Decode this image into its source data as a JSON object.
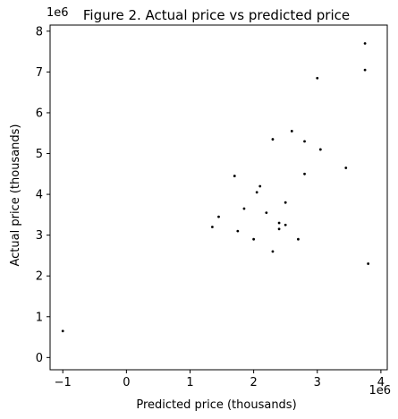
{
  "chart_data": {
    "type": "scatter",
    "title": "Figure 2. Actual price vs predicted price",
    "xlabel": "Predicted price (thousands)",
    "ylabel": "Actual price (thousands)",
    "x_offset_label": "1e6",
    "y_offset_label": "1e6",
    "xlim": [
      -1200000,
      4100000
    ],
    "ylim": [
      -300000,
      8150000
    ],
    "x_ticks": [
      -1000000,
      0,
      1000000,
      2000000,
      3000000,
      4000000
    ],
    "x_tick_labels": [
      "−1",
      "0",
      "1",
      "2",
      "3",
      "4"
    ],
    "y_ticks": [
      0,
      1000000,
      2000000,
      3000000,
      4000000,
      5000000,
      6000000,
      7000000,
      8000000
    ],
    "y_tick_labels": [
      "0",
      "1",
      "2",
      "3",
      "4",
      "5",
      "6",
      "7",
      "8"
    ],
    "grid": false,
    "legend": false,
    "marker_color": "#000000",
    "series": [
      {
        "points": [
          [
            -1000000,
            650000
          ],
          [
            3750000,
            7700000
          ],
          [
            3750000,
            7050000
          ],
          [
            3000000,
            6850000
          ],
          [
            2600000,
            5550000
          ],
          [
            2300000,
            5350000
          ],
          [
            2800000,
            5300000
          ],
          [
            3050000,
            5100000
          ],
          [
            3450000,
            4650000
          ],
          [
            2800000,
            4500000
          ],
          [
            3800000,
            2300000
          ],
          [
            1700000,
            4450000
          ],
          [
            2100000,
            4200000
          ],
          [
            2050000,
            4050000
          ],
          [
            2500000,
            3800000
          ],
          [
            2400000,
            3300000
          ],
          [
            2500000,
            3250000
          ],
          [
            2400000,
            3150000
          ],
          [
            2700000,
            2900000
          ],
          [
            1850000,
            3650000
          ],
          [
            2200000,
            3550000
          ],
          [
            1450000,
            3450000
          ],
          [
            1750000,
            3100000
          ],
          [
            2000000,
            2900000
          ],
          [
            2300000,
            2600000
          ],
          [
            1350000,
            3200000
          ]
        ]
      }
    ]
  }
}
